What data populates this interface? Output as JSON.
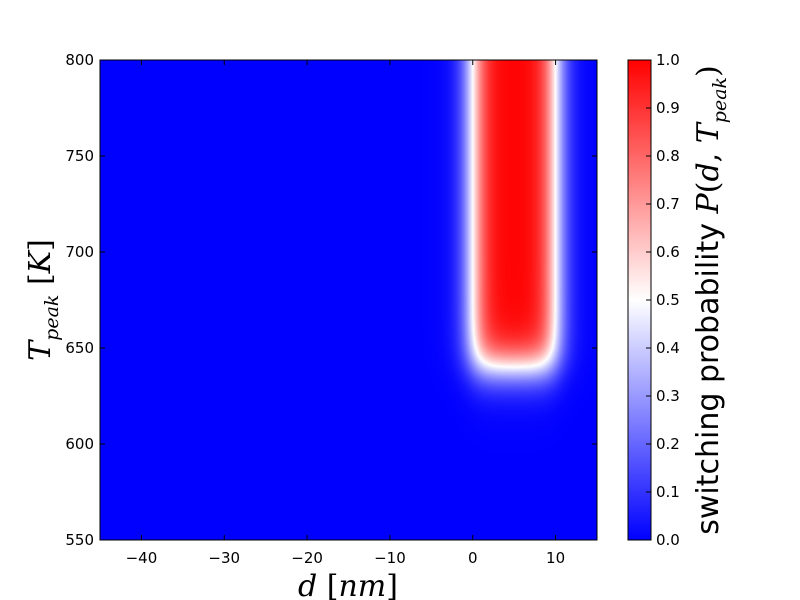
{
  "chart_data": {
    "type": "heatmap",
    "title": "",
    "xlabel": "d [nm]",
    "ylabel": "T_peak [K]",
    "xlim": [
      -45,
      15
    ],
    "ylim": [
      550,
      800
    ],
    "x_ticks": [
      -40,
      -30,
      -20,
      -10,
      0,
      10
    ],
    "y_ticks": [
      550,
      600,
      650,
      700,
      750,
      800
    ],
    "x_tick_labels": [
      "−40",
      "−30",
      "−20",
      "−10",
      "0",
      "10"
    ],
    "y_tick_labels": [
      "550",
      "600",
      "650",
      "700",
      "750",
      "800"
    ],
    "colormap": "bwr",
    "colors": {
      "low": "#0000ff",
      "mid": "#ffffff",
      "high": "#ff0000"
    },
    "colorbar": {
      "label": "switching probability P(d, T_peak)",
      "label_text": "switching probability ",
      "label_math": "P(d, T_peak)",
      "range": [
        0.0,
        1.0
      ],
      "ticks": [
        0.0,
        0.1,
        0.2,
        0.3,
        0.4,
        0.5,
        0.6,
        0.7,
        0.8,
        0.9,
        1.0
      ],
      "tick_labels": [
        "0.0",
        "0.1",
        "0.2",
        "0.3",
        "0.4",
        "0.5",
        "0.6",
        "0.7",
        "0.8",
        "0.9",
        "1.0"
      ]
    },
    "region": {
      "description_values": "probability ~1 for d in about [0, 10] nm and T_peak above about 640 K; ~0 elsewhere",
      "d_min": 0.0,
      "d_max": 10.0,
      "T_threshold": 640,
      "d_edge_width": 0.9,
      "T_edge_width": 6.5
    }
  }
}
